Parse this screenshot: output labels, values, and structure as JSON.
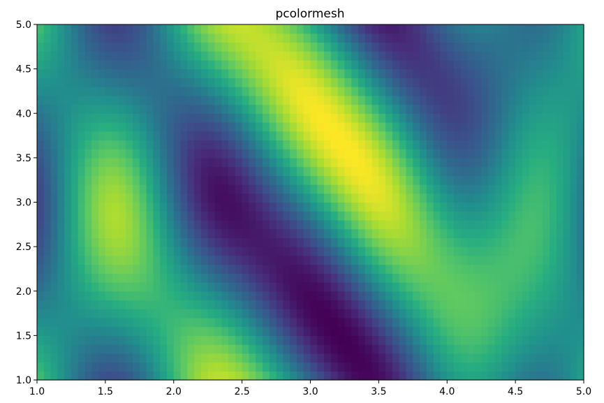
{
  "chart_data": {
    "type": "heatmap",
    "title": "pcolormesh",
    "xlabel": "",
    "ylabel": "",
    "xlim": [
      1.0,
      5.0
    ],
    "ylim": [
      1.0,
      5.0
    ],
    "x_ticks": [
      "1.0",
      "1.5",
      "2.0",
      "2.5",
      "3.0",
      "3.5",
      "4.0",
      "4.5",
      "5.0"
    ],
    "y_ticks": [
      "1.0",
      "1.5",
      "2.0",
      "2.5",
      "3.0",
      "3.5",
      "4.0",
      "4.5",
      "5.0"
    ],
    "colormap": "viridis",
    "grid": false,
    "legend": "none",
    "grid_resolution": [
      80,
      40
    ],
    "function": "sin(3x)*cos(3y) + cos(2*(x+y)) - sin(x*y)-like interference pattern; diagonal dark bands around (3,3)"
  }
}
